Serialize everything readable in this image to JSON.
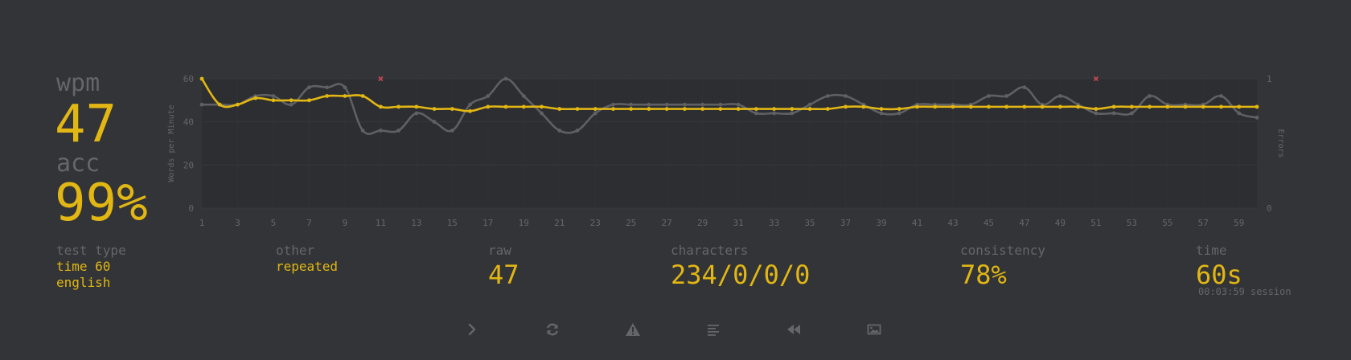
{
  "stats": {
    "wpm_label": "wpm",
    "wpm_value": "47",
    "acc_label": "acc",
    "acc_value": "99%"
  },
  "info": {
    "test_type_label": "test type",
    "test_type_value_1": "time 60",
    "test_type_value_2": "english",
    "other_label": "other",
    "other_value": "repeated",
    "raw_label": "raw",
    "raw_value": "47",
    "characters_label": "characters",
    "characters_value": "234/0/0/0",
    "consistency_label": "consistency",
    "consistency_value": "78%",
    "time_label": "time",
    "time_value": "60s",
    "session_text": "00:03:59 session"
  },
  "buttons": [
    {
      "name": "next-test-button",
      "icon": "chevron-right-icon"
    },
    {
      "name": "restart-button",
      "icon": "refresh-icon"
    },
    {
      "name": "report-button",
      "icon": "warning-icon"
    },
    {
      "name": "word-history-button",
      "icon": "align-left-icon"
    },
    {
      "name": "replay-button",
      "icon": "backward-icon"
    },
    {
      "name": "screenshot-button",
      "icon": "image-icon"
    }
  ],
  "colors": {
    "background": "#323437",
    "accent": "#e2b714",
    "sub": "#646669",
    "raw_line": "#5f6063",
    "error": "#ca4754",
    "plot_bg": "#2c2e31"
  },
  "chart_data": {
    "type": "line",
    "ylabel": "Words per Minute",
    "y2label": "Errors",
    "ylim": [
      0,
      60
    ],
    "y2lim": [
      0,
      1
    ],
    "yticks": [
      0,
      20,
      40,
      60
    ],
    "y2ticks": [
      0,
      1
    ],
    "xticks": [
      1,
      3,
      5,
      7,
      9,
      11,
      13,
      15,
      17,
      19,
      21,
      23,
      25,
      27,
      29,
      31,
      33,
      35,
      37,
      39,
      41,
      43,
      45,
      47,
      49,
      51,
      53,
      55,
      57,
      59
    ],
    "x": [
      1,
      2,
      3,
      4,
      5,
      6,
      7,
      8,
      9,
      10,
      11,
      12,
      13,
      14,
      15,
      16,
      17,
      18,
      19,
      20,
      21,
      22,
      23,
      24,
      25,
      26,
      27,
      28,
      29,
      30,
      31,
      32,
      33,
      34,
      35,
      36,
      37,
      38,
      39,
      40,
      41,
      42,
      43,
      44,
      45,
      46,
      47,
      48,
      49,
      50,
      51,
      52,
      53,
      54,
      55,
      56,
      57,
      58,
      59,
      60
    ],
    "series": [
      {
        "name": "wpm",
        "color": "#e2b714",
        "values": [
          60,
          48,
          48,
          51,
          50,
          50,
          50,
          52,
          52,
          52,
          47,
          47,
          47,
          46,
          46,
          45,
          47,
          47,
          47,
          47,
          46,
          46,
          46,
          46,
          46,
          46,
          46,
          46,
          46,
          46,
          46,
          46,
          46,
          46,
          46,
          46,
          47,
          47,
          46,
          46,
          47,
          47,
          47,
          47,
          47,
          47,
          47,
          47,
          47,
          47,
          46,
          47,
          47,
          47,
          47,
          47,
          47,
          47,
          47,
          47
        ]
      },
      {
        "name": "raw",
        "color": "#5f6063",
        "values": [
          48,
          48,
          48,
          52,
          52,
          48,
          56,
          56,
          56,
          36,
          36,
          36,
          44,
          40,
          36,
          48,
          52,
          60,
          52,
          44,
          36,
          36,
          44,
          48,
          48,
          48,
          48,
          48,
          48,
          48,
          48,
          44,
          44,
          44,
          48,
          52,
          52,
          48,
          44,
          44,
          48,
          48,
          48,
          48,
          52,
          52,
          56,
          48,
          52,
          48,
          44,
          44,
          44,
          52,
          48,
          48,
          48,
          52,
          44,
          42
        ]
      }
    ],
    "errors": [
      {
        "x": 11,
        "value": 1
      },
      {
        "x": 51,
        "value": 1
      }
    ]
  }
}
